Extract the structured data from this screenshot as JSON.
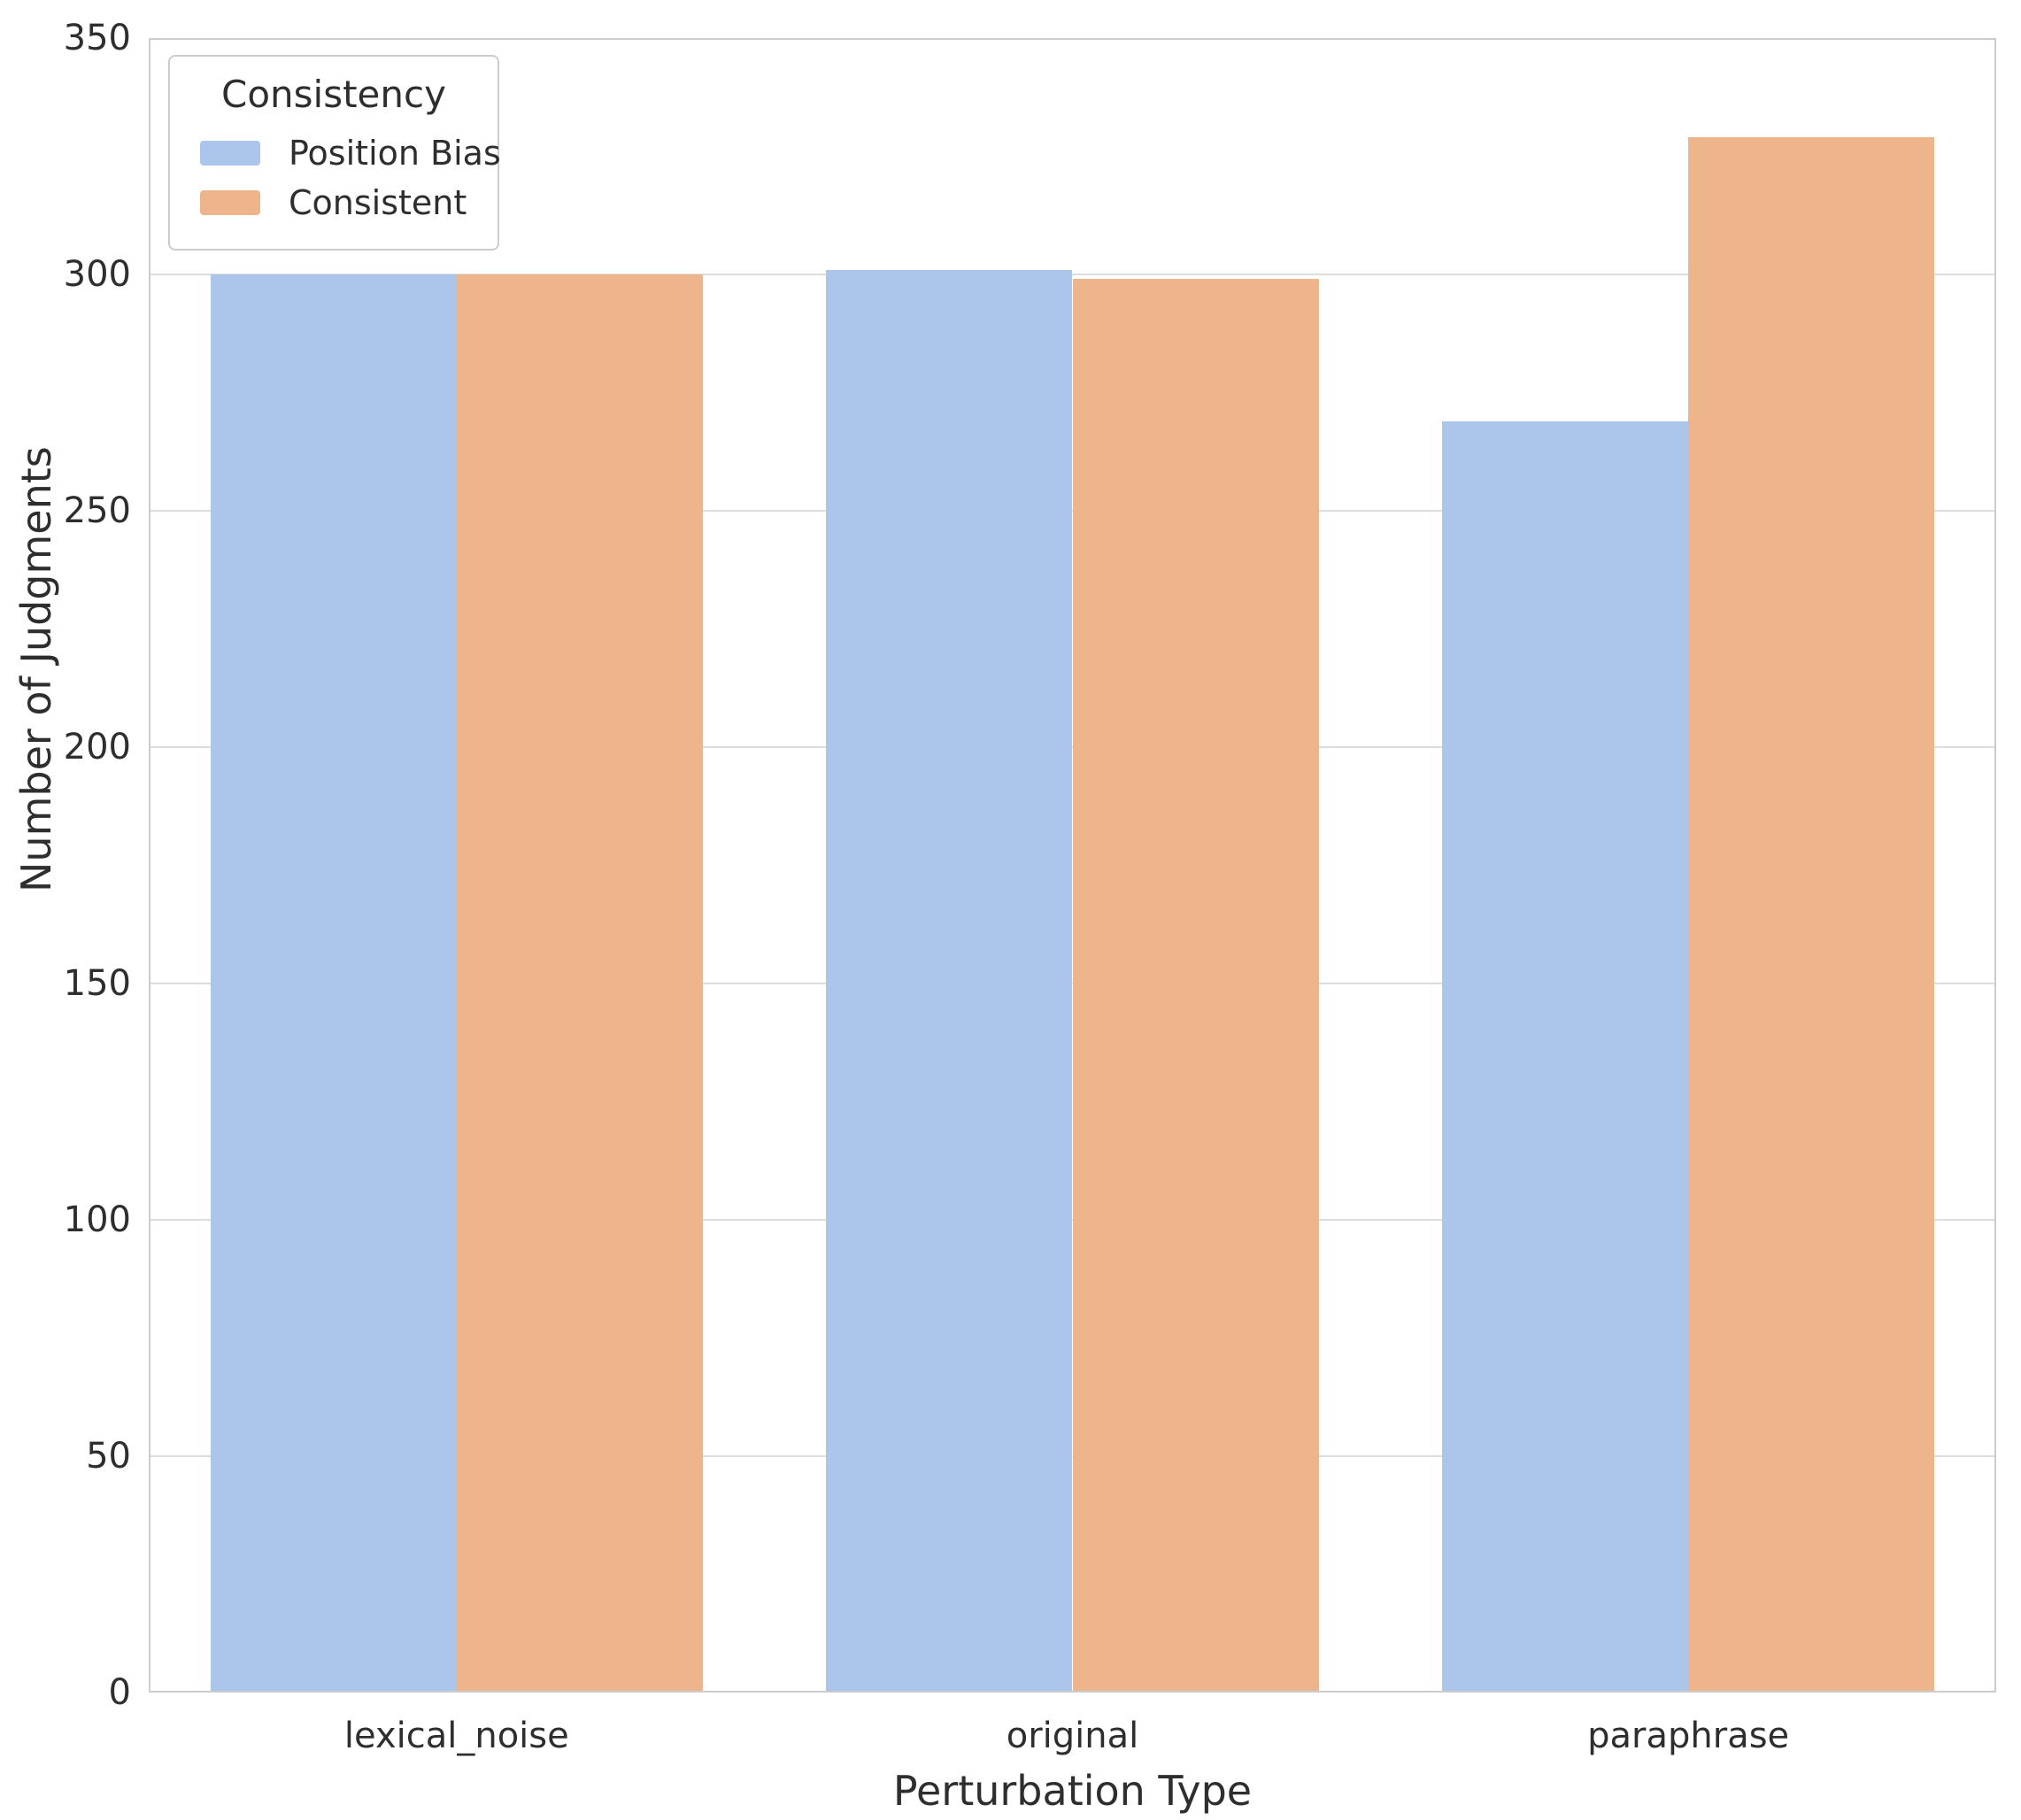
{
  "chart_data": {
    "type": "bar",
    "categories": [
      "lexical_noise",
      "original",
      "paraphrase"
    ],
    "series": [
      {
        "name": "Position Bias",
        "color": "#abc6ea",
        "values": [
          300,
          301,
          269
        ]
      },
      {
        "name": "Consistent",
        "color": "#eeb58d",
        "values": [
          300,
          299,
          329
        ]
      }
    ],
    "title": "",
    "xlabel": "Perturbation Type",
    "ylabel": "Number of Judgments",
    "ylim": [
      0,
      350
    ],
    "yticks": [
      0,
      50,
      100,
      150,
      200,
      250,
      300,
      350
    ],
    "grid": true,
    "legend_title": "Consistency",
    "legend_position": "upper left",
    "colors": {
      "grid": "#dddddd",
      "spine": "#cccccc",
      "text": "#2e2e2e",
      "background": "#ffffff"
    }
  }
}
